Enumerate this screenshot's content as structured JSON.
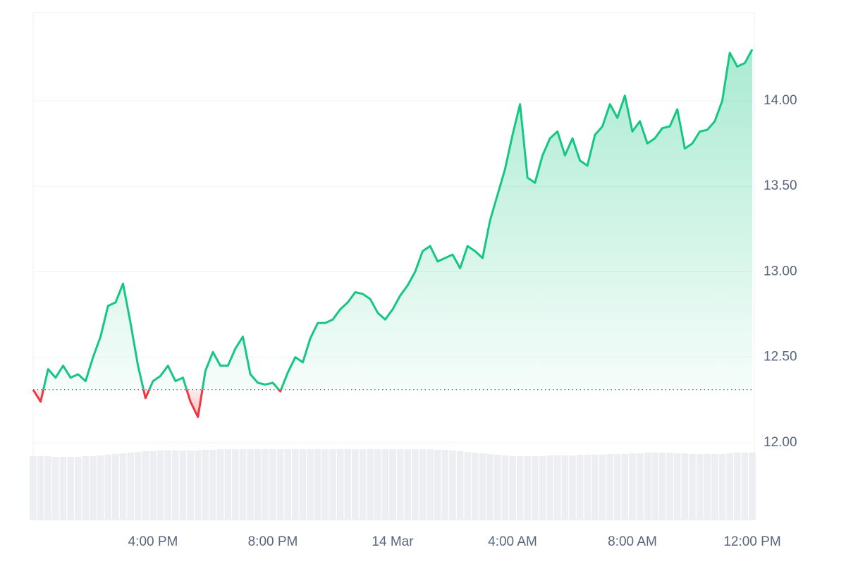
{
  "chart_data": {
    "type": "line",
    "categories": [
      null,
      null,
      null,
      null,
      null,
      null,
      null,
      null,
      null,
      null,
      null,
      null,
      null,
      null,
      null,
      null,
      "4:00 PM",
      null,
      null,
      null,
      null,
      null,
      null,
      null,
      null,
      null,
      null,
      null,
      null,
      null,
      null,
      null,
      "8:00 PM",
      null,
      null,
      null,
      null,
      null,
      null,
      null,
      null,
      null,
      null,
      null,
      null,
      null,
      null,
      null,
      "14 Mar",
      null,
      null,
      null,
      null,
      null,
      null,
      null,
      null,
      null,
      null,
      null,
      null,
      null,
      null,
      null,
      "4:00 AM",
      null,
      null,
      null,
      null,
      null,
      null,
      null,
      null,
      null,
      null,
      null,
      null,
      null,
      null,
      null,
      "8:00 AM",
      null,
      null,
      null,
      null,
      null,
      null,
      null,
      null,
      null,
      null,
      null,
      null,
      null,
      null,
      null,
      "12:00 PM"
    ],
    "values": [
      12.31,
      12.24,
      12.43,
      12.38,
      12.45,
      12.38,
      12.4,
      12.36,
      12.5,
      12.62,
      12.8,
      12.82,
      12.93,
      12.7,
      12.45,
      12.26,
      12.36,
      12.39,
      12.45,
      12.36,
      12.38,
      12.24,
      12.15,
      12.42,
      12.53,
      12.45,
      12.45,
      12.55,
      12.62,
      12.4,
      12.35,
      12.34,
      12.35,
      12.3,
      12.41,
      12.5,
      12.47,
      12.61,
      12.7,
      12.7,
      12.72,
      12.78,
      12.82,
      12.88,
      12.87,
      12.84,
      12.76,
      12.72,
      12.78,
      12.86,
      12.92,
      13.0,
      13.12,
      13.15,
      13.06,
      13.08,
      13.1,
      13.02,
      13.15,
      13.12,
      13.08,
      13.3,
      13.45,
      13.6,
      13.8,
      13.98,
      13.55,
      13.52,
      13.68,
      13.78,
      13.82,
      13.68,
      13.78,
      13.65,
      13.62,
      13.8,
      13.85,
      13.98,
      13.9,
      14.03,
      13.82,
      13.88,
      13.75,
      13.78,
      13.84,
      13.85,
      13.95,
      13.72,
      13.75,
      13.82,
      13.83,
      13.88,
      14.0,
      14.28,
      14.2,
      14.22,
      14.3
    ],
    "color": "#16c784",
    "down_color": "#ea3943",
    "baseline": 12.31,
    "ylim": [
      11.55,
      14.515
    ],
    "yticks": [
      {
        "value": 12,
        "label": "12.00"
      },
      {
        "value": 12.5,
        "label": "12.50"
      },
      {
        "value": 13,
        "label": "13.00"
      },
      {
        "value": 13.5,
        "label": "13.50"
      },
      {
        "value": 14,
        "label": "14.00"
      }
    ],
    "grid": true,
    "volume": {
      "color": "#eceef2",
      "ylim": [
        0,
        100
      ],
      "values": [
        90,
        90,
        90,
        89,
        89,
        89,
        89,
        90,
        90,
        91,
        92,
        93,
        94,
        95,
        96,
        97,
        97,
        98,
        98,
        98,
        98,
        98,
        98,
        99,
        99,
        100,
        100,
        100,
        100,
        100,
        100,
        100,
        100,
        100,
        100,
        100,
        100,
        100,
        100,
        100,
        100,
        100,
        100,
        100,
        100,
        100,
        100,
        100,
        100,
        100,
        100,
        100,
        100,
        100,
        99,
        99,
        98,
        97,
        96,
        95,
        94,
        93,
        92,
        91,
        90,
        90,
        90,
        90,
        90,
        91,
        91,
        91,
        91,
        92,
        92,
        92,
        92,
        93,
        93,
        93,
        94,
        94,
        95,
        95,
        95,
        95,
        94,
        94,
        93,
        93,
        93,
        93,
        93,
        94,
        95,
        95,
        95
      ]
    }
  }
}
